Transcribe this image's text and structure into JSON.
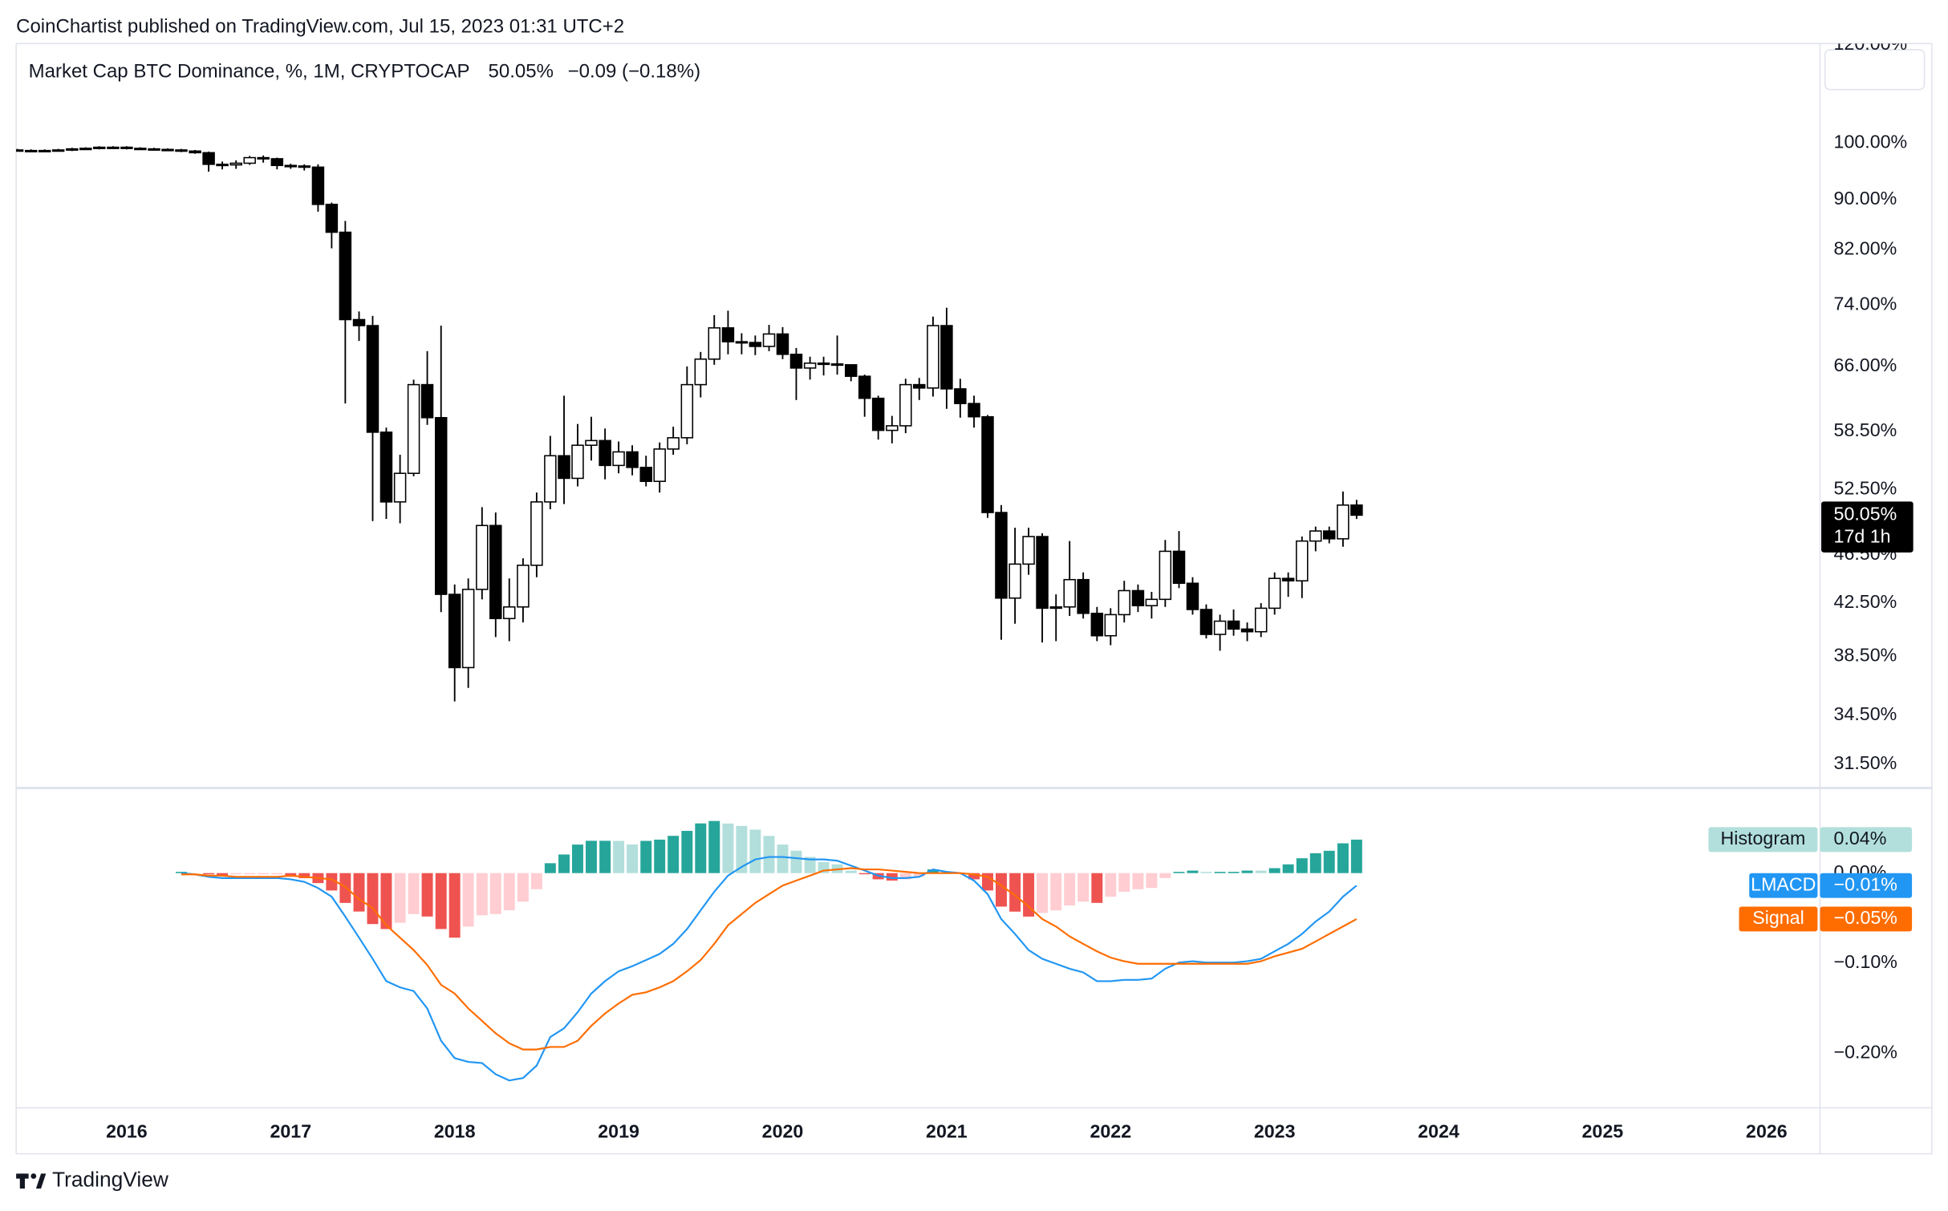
{
  "published": "CoinChartist published on TradingView.com, Jul 15, 2023 01:31 UTC+2",
  "brand": "TradingView",
  "chart_data": [
    {
      "type": "candlestick",
      "title": "Market Cap BTC Dominance, %, 1M, CRYPTOCAP",
      "last_value_label": "50.05%",
      "change_label": "−0.09 (−0.18%)",
      "countdown": "17d 1h",
      "log_scale": true,
      "grid": false,
      "up_color": "#ffffff",
      "down_color": "#000000",
      "wick_color": "#000000",
      "xlim": [
        2015.326,
        2026.326
      ],
      "ylim": [
        30.17,
        120.29
      ],
      "yticks": [
        {
          "value": 120,
          "label": "120.00%"
        },
        {
          "value": 100,
          "label": "100.00%"
        },
        {
          "value": 90,
          "label": "90.00%"
        },
        {
          "value": 82,
          "label": "82.00%"
        },
        {
          "value": 74,
          "label": "74.00%"
        },
        {
          "value": 66,
          "label": "66.00%"
        },
        {
          "value": 58.5,
          "label": "58.50%"
        },
        {
          "value": 52.5,
          "label": "52.50%"
        },
        {
          "value": 46.5,
          "label": "46.50%"
        },
        {
          "value": 42.5,
          "label": "42.50%"
        },
        {
          "value": 38.5,
          "label": "38.50%"
        },
        {
          "value": 34.5,
          "label": "34.50%"
        },
        {
          "value": 31.5,
          "label": "31.50%"
        }
      ],
      "x": [
        2015.333,
        2015.417,
        2015.5,
        2015.583,
        2015.667,
        2015.75,
        2015.833,
        2015.917,
        2016,
        2016.083,
        2016.167,
        2016.25,
        2016.333,
        2016.417,
        2016.5,
        2016.583,
        2016.667,
        2016.75,
        2016.833,
        2016.917,
        2017,
        2017.083,
        2017.167,
        2017.25,
        2017.333,
        2017.417,
        2017.5,
        2017.583,
        2017.667,
        2017.75,
        2017.833,
        2017.917,
        2018,
        2018.083,
        2018.167,
        2018.25,
        2018.333,
        2018.417,
        2018.5,
        2018.583,
        2018.667,
        2018.75,
        2018.833,
        2018.917,
        2019,
        2019.083,
        2019.167,
        2019.25,
        2019.333,
        2019.417,
        2019.5,
        2019.583,
        2019.667,
        2019.75,
        2019.833,
        2019.917,
        2020,
        2020.083,
        2020.167,
        2020.25,
        2020.333,
        2020.417,
        2020.5,
        2020.583,
        2020.667,
        2020.75,
        2020.833,
        2020.917,
        2021,
        2021.083,
        2021.167,
        2021.25,
        2021.333,
        2021.417,
        2021.5,
        2021.583,
        2021.667,
        2021.75,
        2021.833,
        2021.917,
        2022,
        2022.083,
        2022.167,
        2022.25,
        2022.333,
        2022.417,
        2022.5,
        2022.583,
        2022.667,
        2022.75,
        2022.833,
        2022.917,
        2023,
        2023.083,
        2023.167,
        2023.25,
        2023.333,
        2023.417,
        2023.5
      ],
      "open": [
        98.7,
        98.6,
        98.5,
        98.6,
        98.7,
        98.9,
        99.0,
        99.2,
        99.2,
        99.0,
        98.9,
        98.8,
        98.7,
        98.5,
        98.2,
        96.1,
        96.0,
        96.3,
        97.3,
        97.1,
        95.9,
        95.8,
        95.6,
        89.2,
        84.7,
        72.0,
        71.2,
        58.4,
        51.3,
        54.1,
        63.8,
        60.0,
        43.2,
        37.7,
        43.6,
        49.1,
        41.3,
        42.2,
        45.6,
        51.3,
        55.9,
        53.6,
        57.0,
        57.5,
        54.9,
        56.3,
        54.7,
        53.3,
        56.6,
        57.8,
        63.8,
        66.9,
        70.9,
        69.1,
        69.0,
        68.5,
        70.1,
        67.5,
        65.8,
        66.4,
        66.3,
        66.2,
        64.8,
        62.2,
        58.6,
        59.1,
        63.8,
        63.4,
        71.2,
        63.3,
        61.6,
        60.1,
        50.3,
        42.9,
        45.7,
        48.1,
        42.1,
        42.2,
        44.4,
        41.7,
        40.0,
        41.6,
        43.5,
        42.3,
        42.8,
        46.8,
        44.1,
        42.0,
        40.1,
        41.1,
        40.5,
        40.3,
        42.1,
        44.5,
        44.3,
        47.7,
        48.6,
        47.9,
        51.0
      ],
      "high": [
        98.9,
        98.8,
        98.8,
        98.9,
        99.1,
        99.2,
        99.4,
        99.4,
        99.4,
        99.2,
        99.1,
        99.0,
        98.9,
        98.7,
        98.4,
        96.6,
        96.8,
        97.6,
        97.7,
        97.3,
        96.2,
        96.1,
        96.1,
        89.5,
        86.5,
        73.1,
        72.5,
        58.9,
        56.0,
        64.4,
        67.9,
        71.2,
        44.0,
        44.5,
        50.8,
        50.3,
        44.5,
        46.2,
        52.2,
        58.0,
        62.5,
        59.3,
        60.1,
        58.8,
        57.4,
        57.0,
        55.9,
        57.3,
        59.0,
        66.0,
        67.8,
        72.6,
        73.2,
        70.2,
        69.9,
        71.3,
        71.0,
        68.3,
        67.2,
        67.2,
        69.9,
        66.2,
        65.0,
        62.5,
        60.2,
        64.5,
        64.6,
        72.4,
        73.6,
        64.5,
        62.5,
        60.3,
        51.0,
        48.9,
        48.9,
        48.4,
        43.2,
        47.7,
        45.0,
        42.2,
        42.1,
        44.3,
        44.0,
        43.4,
        47.8,
        48.6,
        44.6,
        42.4,
        41.6,
        42.0,
        41.0,
        42.5,
        45.0,
        45.0,
        48.1,
        49.0,
        49.0,
        52.3,
        51.5
      ],
      "low": [
        98.4,
        98.3,
        98.3,
        98.4,
        98.5,
        98.7,
        98.8,
        99.0,
        98.8,
        98.7,
        98.6,
        98.5,
        98.3,
        98.0,
        94.8,
        95.2,
        95.3,
        96.0,
        96.4,
        95.2,
        95.3,
        95.0,
        88.0,
        82.2,
        61.6,
        69.2,
        49.5,
        49.7,
        49.3,
        53.8,
        59.2,
        41.8,
        35.4,
        36.3,
        42.8,
        39.9,
        39.6,
        41.0,
        44.6,
        50.6,
        51.1,
        52.8,
        55.4,
        53.5,
        54.1,
        53.9,
        52.8,
        52.2,
        56.0,
        57.1,
        62.3,
        66.2,
        67.5,
        67.5,
        67.4,
        67.9,
        66.9,
        62.0,
        64.4,
        64.9,
        65.0,
        64.2,
        60.1,
        57.6,
        57.2,
        58.3,
        62.0,
        62.4,
        61.0,
        60.0,
        58.9,
        49.8,
        39.7,
        40.9,
        44.8,
        39.5,
        39.6,
        41.5,
        41.3,
        39.6,
        39.3,
        41.0,
        41.8,
        41.3,
        42.2,
        43.7,
        41.6,
        39.8,
        38.9,
        40.0,
        39.6,
        39.9,
        41.6,
        43.0,
        42.9,
        46.8,
        47.5,
        47.2,
        49.7
      ],
      "close": [
        98.6,
        98.5,
        98.6,
        98.7,
        98.9,
        99.0,
        99.2,
        99.2,
        99.0,
        98.9,
        98.8,
        98.7,
        98.5,
        98.2,
        96.1,
        96.0,
        96.3,
        97.3,
        97.1,
        95.9,
        95.8,
        95.6,
        89.2,
        84.7,
        72.0,
        71.2,
        58.4,
        51.3,
        54.1,
        63.8,
        60.0,
        43.2,
        37.7,
        43.6,
        49.1,
        41.3,
        42.2,
        45.6,
        51.3,
        55.9,
        53.6,
        57.0,
        57.5,
        54.9,
        56.3,
        54.7,
        53.3,
        56.6,
        57.8,
        63.8,
        66.9,
        70.9,
        69.1,
        69.0,
        68.5,
        70.1,
        67.5,
        65.8,
        66.4,
        66.3,
        66.2,
        64.8,
        62.2,
        58.6,
        59.1,
        63.8,
        63.4,
        71.2,
        63.3,
        61.6,
        60.1,
        50.3,
        42.9,
        45.7,
        48.1,
        42.1,
        42.2,
        44.4,
        41.7,
        40.0,
        41.6,
        43.5,
        42.3,
        42.8,
        46.8,
        44.1,
        42.0,
        40.1,
        41.1,
        40.5,
        40.3,
        42.1,
        44.5,
        44.3,
        47.7,
        48.6,
        47.9,
        51.0,
        50.05
      ]
    },
    {
      "type": "macd",
      "grid": false,
      "xlim": [
        2015.326,
        2026.326
      ],
      "xticks": [
        2016,
        2017,
        2018,
        2019,
        2020,
        2021,
        2022,
        2023,
        2024,
        2025,
        2026
      ],
      "ylim": [
        -0.2607,
        0.0924
      ],
      "yticks": [
        {
          "value": 0,
          "label": "0.00%"
        },
        {
          "value": -0.1,
          "label": "−0.10%"
        },
        {
          "value": -0.2,
          "label": "−0.20%"
        }
      ],
      "x": [
        2016.333,
        2016.417,
        2016.5,
        2016.583,
        2016.667,
        2016.75,
        2016.833,
        2016.917,
        2017,
        2017.083,
        2017.167,
        2017.25,
        2017.333,
        2017.417,
        2017.5,
        2017.583,
        2017.667,
        2017.75,
        2017.833,
        2017.917,
        2018,
        2018.083,
        2018.167,
        2018.25,
        2018.333,
        2018.417,
        2018.5,
        2018.583,
        2018.667,
        2018.75,
        2018.833,
        2018.917,
        2019,
        2019.083,
        2019.167,
        2019.25,
        2019.333,
        2019.417,
        2019.5,
        2019.583,
        2019.667,
        2019.75,
        2019.833,
        2019.917,
        2020,
        2020.083,
        2020.167,
        2020.25,
        2020.333,
        2020.417,
        2020.5,
        2020.583,
        2020.667,
        2020.75,
        2020.833,
        2020.917,
        2021,
        2021.083,
        2021.167,
        2021.25,
        2021.333,
        2021.417,
        2021.5,
        2021.583,
        2021.667,
        2021.75,
        2021.833,
        2021.917,
        2022,
        2022.083,
        2022.167,
        2022.25,
        2022.333,
        2022.417,
        2022.5,
        2022.583,
        2022.667,
        2022.75,
        2022.833,
        2022.917,
        2023,
        2023.083,
        2023.167,
        2023.25,
        2023.333,
        2023.417,
        2023.5
      ],
      "series": [
        {
          "name": "Histogram",
          "kind": "histogram",
          "color": "#b2dfdb",
          "last_value_label": "0.04%",
          "colors": {
            "grow_above": "#26a69a",
            "fall_above": "#b2dfdb",
            "grow_below": "#ffcdd2",
            "fall_below": "#ef5350"
          },
          "values": [
            0.0014,
            0,
            -0.0013,
            -0.0027,
            -0.0014,
            -0.0014,
            -0.0014,
            -0.0014,
            -0.0041,
            -0.0056,
            -0.0111,
            -0.0193,
            -0.0331,
            -0.0427,
            -0.0566,
            -0.0621,
            -0.0552,
            -0.0455,
            -0.0482,
            -0.0621,
            -0.0717,
            -0.0594,
            -0.0469,
            -0.0455,
            -0.0413,
            -0.0317,
            -0.0179,
            0.011,
            0.0207,
            0.0317,
            0.0359,
            0.0359,
            0.0358,
            0.0318,
            0.0358,
            0.0372,
            0.0414,
            0.0469,
            0.0552,
            0.0579,
            0.0551,
            0.0524,
            0.0483,
            0.0413,
            0.0317,
            0.0249,
            0.018,
            0.0124,
            0.0097,
            0.0028,
            -0.0013,
            -0.0069,
            -0.0083,
            -0.0069,
            -0.0041,
            0.0041,
            0.0014,
            0,
            -0.0069,
            -0.0193,
            -0.0372,
            -0.0428,
            -0.0483,
            -0.0442,
            -0.0414,
            -0.0359,
            -0.0317,
            -0.0331,
            -0.0262,
            -0.0207,
            -0.0179,
            -0.0165,
            -0.0055,
            0.0014,
            0.0028,
            0.0014,
            0.0014,
            0.0014,
            0.0028,
            0.0027,
            0.0055,
            0.0097,
            0.0165,
            0.0221,
            0.0248,
            0.0331,
            0.0372
          ]
        },
        {
          "name": "LMACD",
          "kind": "line",
          "color": "#2196f3",
          "last_value_label": "−0.01%",
          "values": [
            0,
            -0.0014,
            -0.0041,
            -0.0055,
            -0.0055,
            -0.0055,
            -0.0055,
            -0.0055,
            -0.0069,
            -0.0097,
            -0.0166,
            -0.0262,
            -0.0483,
            -0.0717,
            -0.0952,
            -0.12,
            -0.1269,
            -0.131,
            -0.1503,
            -0.1862,
            -0.2055,
            -0.2097,
            -0.211,
            -0.2234,
            -0.2303,
            -0.2276,
            -0.2138,
            -0.1821,
            -0.1724,
            -0.1545,
            -0.1338,
            -0.12,
            -0.109,
            -0.1034,
            -0.0966,
            -0.0897,
            -0.0786,
            -0.0621,
            -0.0414,
            -0.0207,
            -0.0028,
            0.0069,
            0.0152,
            0.0179,
            0.0179,
            0.0166,
            0.0152,
            0.0152,
            0.0138,
            0.0083,
            0.0028,
            -0.0028,
            -0.0055,
            -0.0055,
            -0.0041,
            0.0041,
            0.0014,
            0,
            -0.0083,
            -0.0234,
            -0.051,
            -0.0676,
            -0.0855,
            -0.0952,
            -0.1007,
            -0.1062,
            -0.1103,
            -0.12,
            -0.12,
            -0.1186,
            -0.1186,
            -0.1172,
            -0.1062,
            -0.0993,
            -0.0979,
            -0.0993,
            -0.0993,
            -0.0993,
            -0.0979,
            -0.0952,
            -0.0869,
            -0.0786,
            -0.0676,
            -0.0538,
            -0.0428,
            -0.0262,
            -0.0138
          ]
        },
        {
          "name": "Signal",
          "kind": "line",
          "color": "#ff6d00",
          "last_value_label": "−0.05%",
          "values": [
            -0.0014,
            -0.0014,
            -0.0028,
            -0.0028,
            -0.0041,
            -0.0041,
            -0.0041,
            -0.0041,
            -0.0028,
            -0.0041,
            -0.0055,
            -0.0069,
            -0.0152,
            -0.029,
            -0.0386,
            -0.0579,
            -0.0717,
            -0.0855,
            -0.1021,
            -0.1241,
            -0.1338,
            -0.1503,
            -0.1641,
            -0.1779,
            -0.189,
            -0.1959,
            -0.1959,
            -0.1931,
            -0.1931,
            -0.1862,
            -0.1697,
            -0.1559,
            -0.1448,
            -0.1352,
            -0.1324,
            -0.1269,
            -0.12,
            -0.109,
            -0.0966,
            -0.0786,
            -0.0579,
            -0.0455,
            -0.0331,
            -0.0234,
            -0.0138,
            -0.0083,
            -0.0028,
            0.0028,
            0.0041,
            0.0055,
            0.0041,
            0.0041,
            0.0028,
            0.0014,
            0,
            0,
            0,
            0,
            -0.0014,
            -0.0041,
            -0.0138,
            -0.0248,
            -0.0372,
            -0.051,
            -0.0593,
            -0.0703,
            -0.0786,
            -0.0869,
            -0.0938,
            -0.0979,
            -0.1007,
            -0.1007,
            -0.1007,
            -0.1007,
            -0.1007,
            -0.1007,
            -0.1007,
            -0.1007,
            -0.1007,
            -0.0979,
            -0.0924,
            -0.0883,
            -0.0841,
            -0.0759,
            -0.0676,
            -0.0593,
            -0.051
          ]
        }
      ]
    }
  ]
}
